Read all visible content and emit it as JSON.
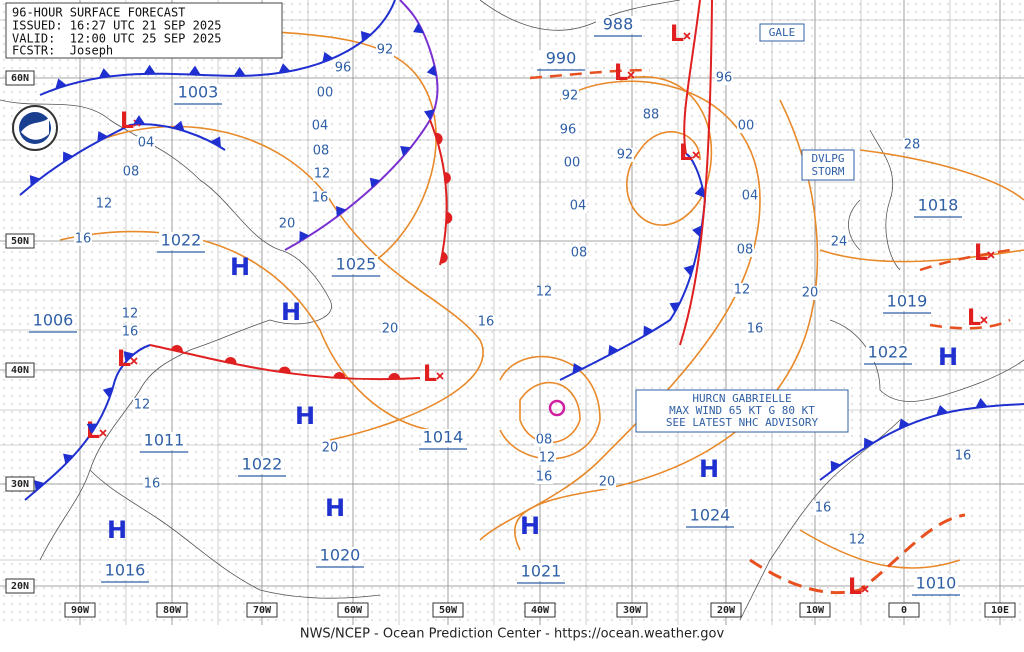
{
  "header": {
    "lines": [
      "96-HOUR SURFACE FORECAST",
      "ISSUED: 16:27 UTC 21 SEP 2025",
      "VALID:  12:00 UTC 25 SEP 2025",
      "FCSTR:  Joseph"
    ]
  },
  "boxes": {
    "gale": "GALE",
    "storm": [
      "DVLPG",
      "STORM"
    ],
    "hurricane": [
      "HURCN GABRIELLE",
      "MAX WIND 65 KT G 80 KT",
      "SEE LATEST NHC ADVISORY"
    ]
  },
  "latitudes": [
    "60N",
    "50N",
    "40N",
    "30N",
    "20N"
  ],
  "longitudes": [
    "90W",
    "80W",
    "70W",
    "60W",
    "50W",
    "40W",
    "30W",
    "20W",
    "10W",
    "0",
    "10E"
  ],
  "isobar_labels": [
    "92",
    "96",
    "00",
    "04",
    "08",
    "12",
    "16",
    "20",
    "04",
    "08",
    "12",
    "16",
    "12",
    "16",
    "12",
    "16",
    "20",
    "20",
    "16",
    "12",
    "08",
    "04",
    "00",
    "96",
    "92",
    "88",
    "92",
    "96",
    "00",
    "04",
    "08",
    "12",
    "16",
    "20",
    "24",
    "28",
    "08",
    "12",
    "16",
    "20",
    "16",
    "16",
    "12"
  ],
  "pressure_values": [
    "1003",
    "1022",
    "1025",
    "1006",
    "1011",
    "1022",
    "1020",
    "1016",
    "1014",
    "1021",
    "1024",
    "990",
    "988",
    "1018",
    "1019",
    "1022",
    "1010"
  ],
  "highs": [
    "H",
    "H",
    "H",
    "H",
    "H",
    "H",
    "H",
    "H"
  ],
  "lows": [
    "L",
    "L",
    "L",
    "L",
    "L",
    "L",
    "L",
    "L",
    "L",
    "L"
  ],
  "footer": "NWS/NCEP - Ocean Prediction Center - https://ocean.weather.gov"
}
